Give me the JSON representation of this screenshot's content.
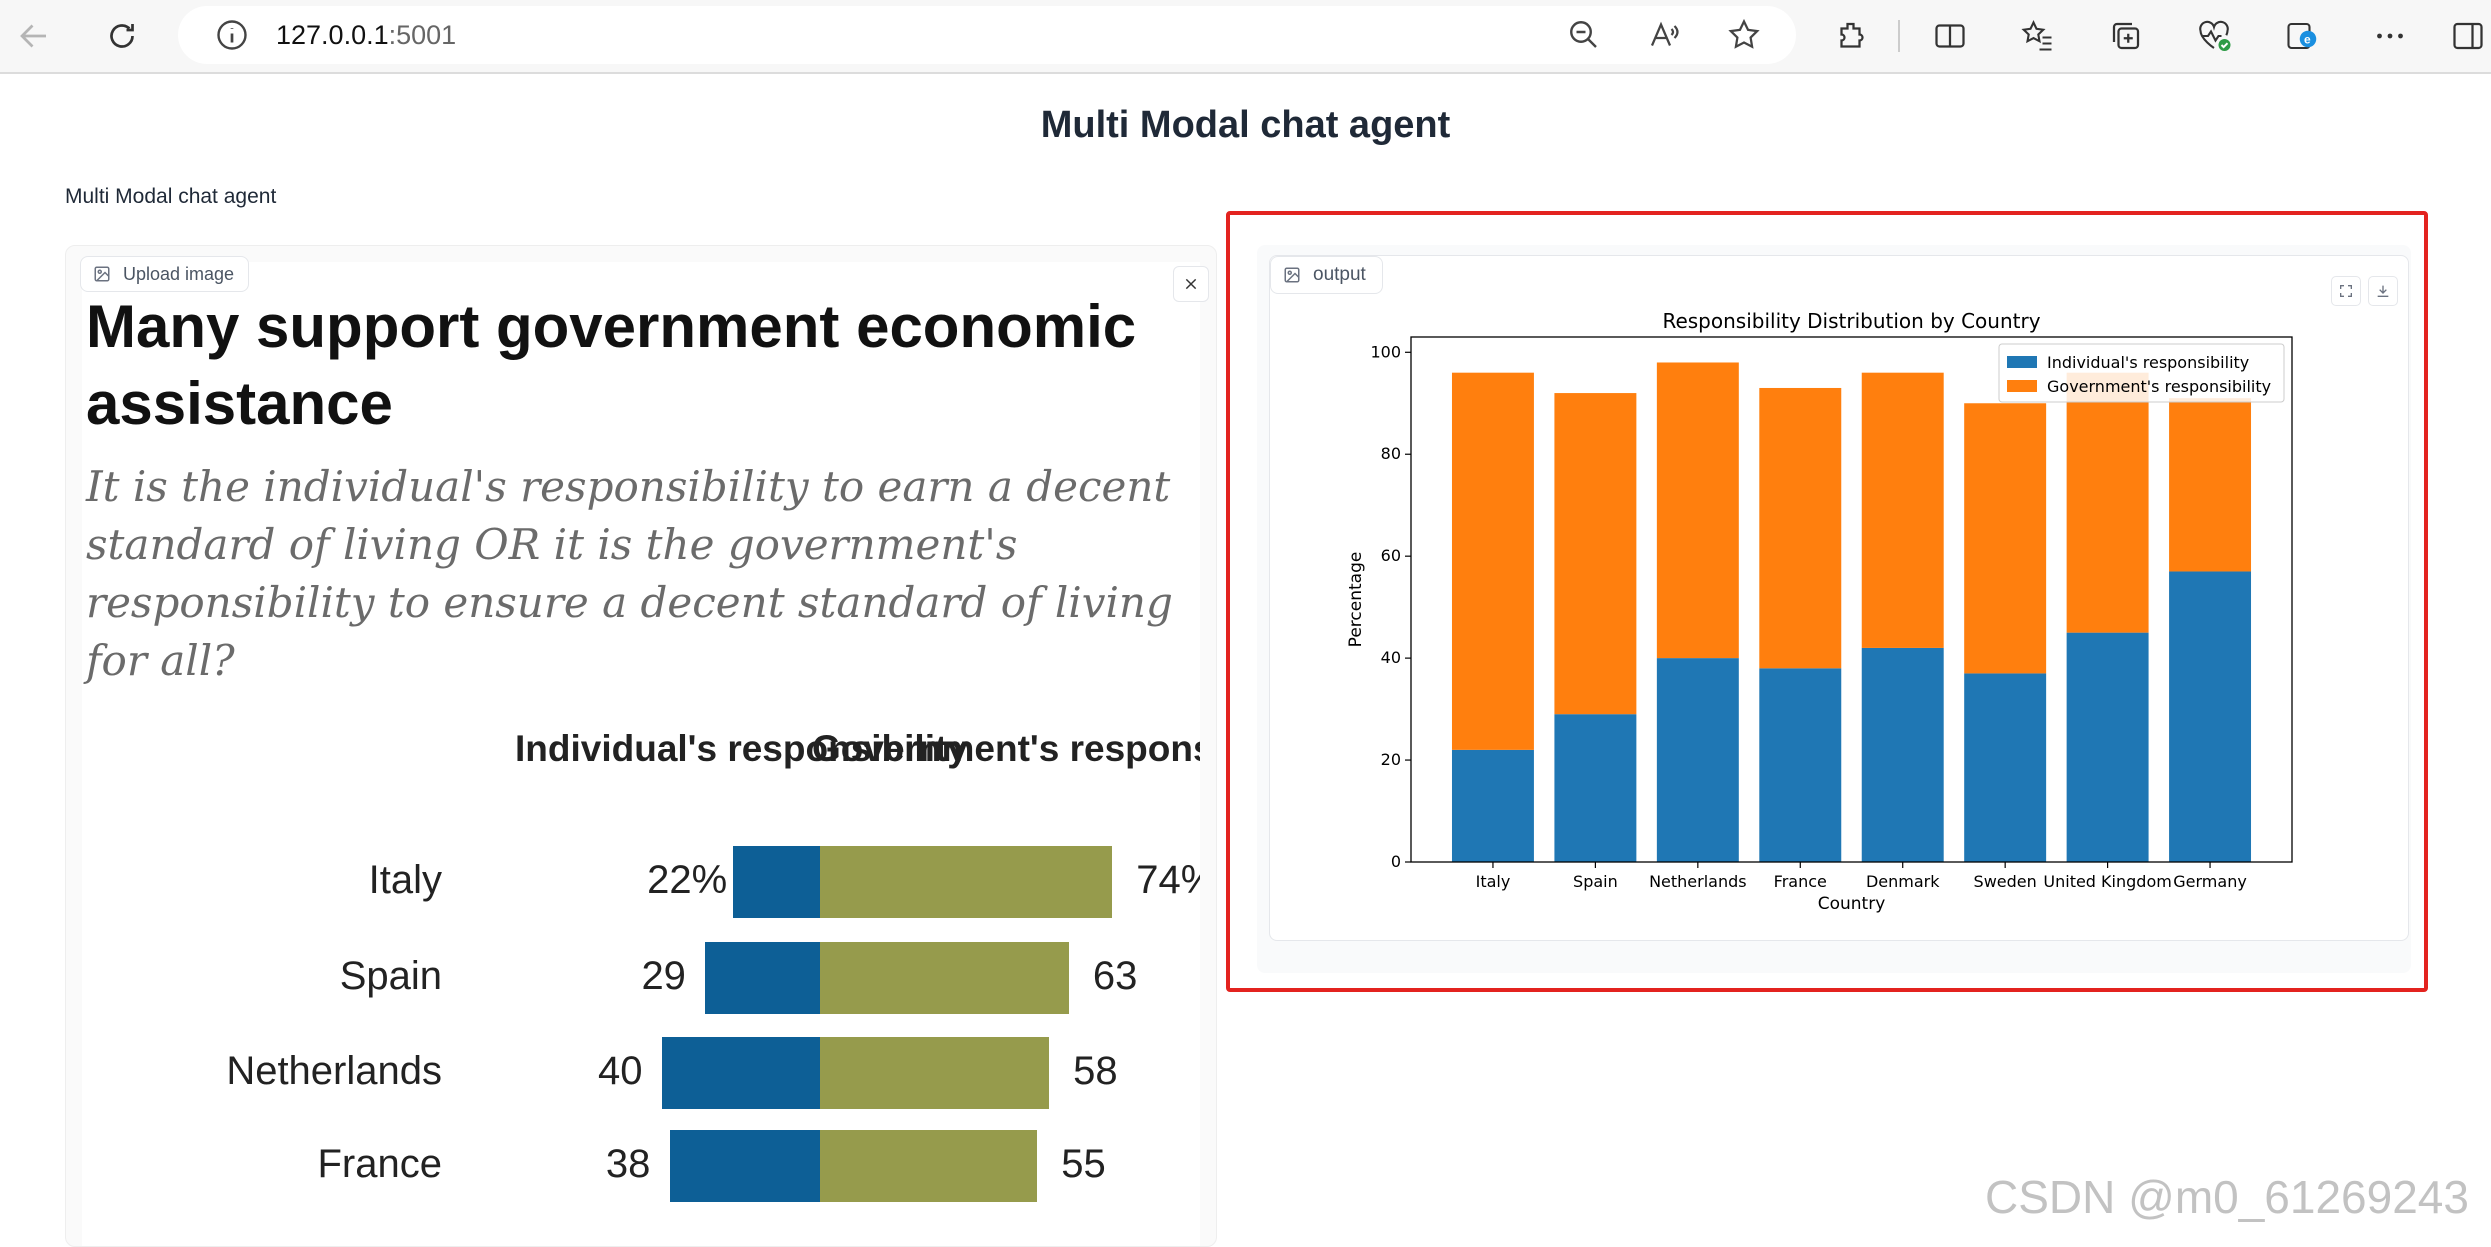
{
  "browser": {
    "url_host": "127.0.0.1",
    "url_port": ":5001"
  },
  "page": {
    "title": "Multi Modal chat agent",
    "description": "Multi Modal chat agent"
  },
  "input_image": {
    "label": "Upload image",
    "headline": "Many support government economic assistance",
    "question": "It is the individual's responsibility to earn a decent standard of living OR it is the government's responsibility to ensure a decent standard of living for all?",
    "col_individual": "Individual's responsibility",
    "col_government": "Government's responsibility",
    "rows": [
      {
        "country": "Italy",
        "individual": "22%",
        "government": "74%",
        "ind_value": 22,
        "gov_value": 74
      },
      {
        "country": "Spain",
        "individual": "29",
        "government": "63",
        "ind_value": 29,
        "gov_value": 63
      },
      {
        "country": "Netherlands",
        "individual": "40",
        "government": "58",
        "ind_value": 40,
        "gov_value": 58
      },
      {
        "country": "France",
        "individual": "38",
        "government": "55",
        "ind_value": 38,
        "gov_value": 55
      }
    ],
    "colors": {
      "individual": "#0d5f96",
      "government": "#969b4c"
    }
  },
  "output": {
    "label": "output"
  },
  "chart_data": {
    "type": "bar",
    "stacked": true,
    "title": "Responsibility Distribution by Country",
    "xlabel": "Country",
    "ylabel": "Percentage",
    "ylim": [
      0,
      103
    ],
    "yticks": [
      0,
      20,
      40,
      60,
      80,
      100
    ],
    "categories": [
      "Italy",
      "Spain",
      "Netherlands",
      "France",
      "Denmark",
      "Sweden",
      "United Kingdom",
      "Germany"
    ],
    "series": [
      {
        "name": "Individual's responsibility",
        "color": "#1f77b4",
        "values": [
          22,
          29,
          40,
          38,
          42,
          37,
          45,
          57
        ]
      },
      {
        "name": "Government's responsibility",
        "color": "#ff7f0e",
        "values": [
          74,
          63,
          58,
          55,
          54,
          53,
          51,
          34
        ]
      }
    ],
    "legend": "top-right",
    "grid": false
  },
  "watermark": "CSDN @m0_61269243"
}
